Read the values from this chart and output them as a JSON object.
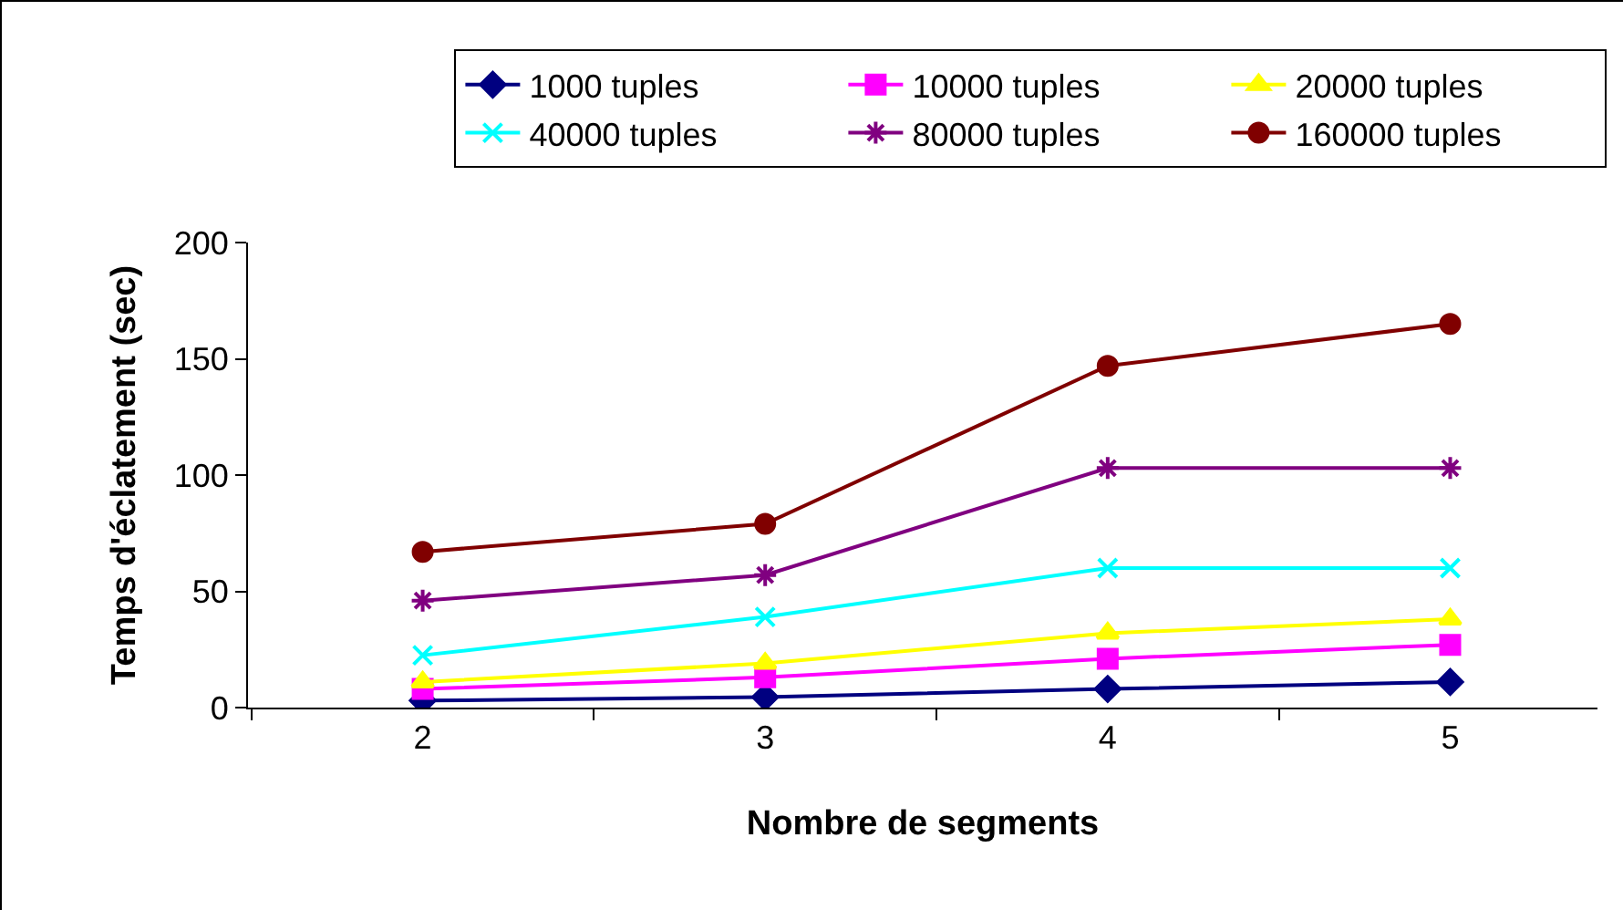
{
  "chart_data": {
    "type": "line",
    "xlabel": "Nombre de segments",
    "ylabel": "Temps d'éclatement (sec)",
    "categories": [
      "2",
      "3",
      "4",
      "5"
    ],
    "series": [
      {
        "name": "1000 tuples",
        "color": "#000080",
        "marker": "diamond",
        "values": [
          3,
          4.5,
          8,
          11
        ]
      },
      {
        "name": "10000 tuples",
        "color": "#ff00ff",
        "marker": "square",
        "values": [
          8,
          13,
          21,
          27
        ]
      },
      {
        "name": "20000 tuples",
        "color": "#ffff00",
        "marker": "triangle",
        "values": [
          11,
          19,
          32,
          38
        ]
      },
      {
        "name": "40000 tuples",
        "color": "#00ffff",
        "marker": "cross",
        "values": [
          22.5,
          39,
          60,
          60
        ]
      },
      {
        "name": "80000 tuples",
        "color": "#800080",
        "marker": "cross",
        "values": [
          46,
          57,
          103,
          103
        ]
      },
      {
        "name": "160000 tuples",
        "color": "#800000",
        "marker": "circle",
        "values": [
          67,
          79,
          147,
          165
        ]
      }
    ],
    "ylim": [
      0,
      200
    ],
    "yticks": [
      0,
      50,
      100,
      150,
      200
    ],
    "grid": false,
    "legend": "top",
    "line_style": "solid"
  }
}
